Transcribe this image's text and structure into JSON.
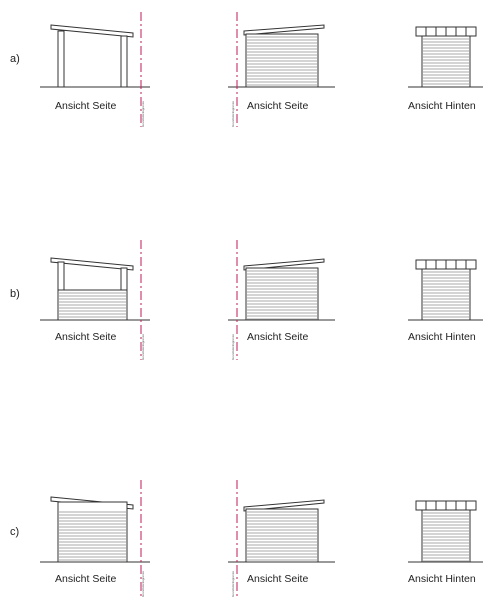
{
  "rows": [
    {
      "id": "a",
      "label": "a)",
      "front": "Ansicht Seite",
      "side": "Ansicht Seite",
      "back": "Ansicht Hinten"
    },
    {
      "id": "b",
      "label": "b)",
      "front": "Ansicht Seite",
      "side": "Ansicht Seite",
      "back": "Ansicht Hinten"
    },
    {
      "id": "c",
      "label": "c)",
      "front": "Ansicht Seite",
      "side": "Ansicht Seite",
      "back": "Ansicht Hinten"
    }
  ],
  "boundary_label": "Grundstücksgrenze",
  "colors": {
    "line": "#333333",
    "boundary": "#c2185b"
  }
}
